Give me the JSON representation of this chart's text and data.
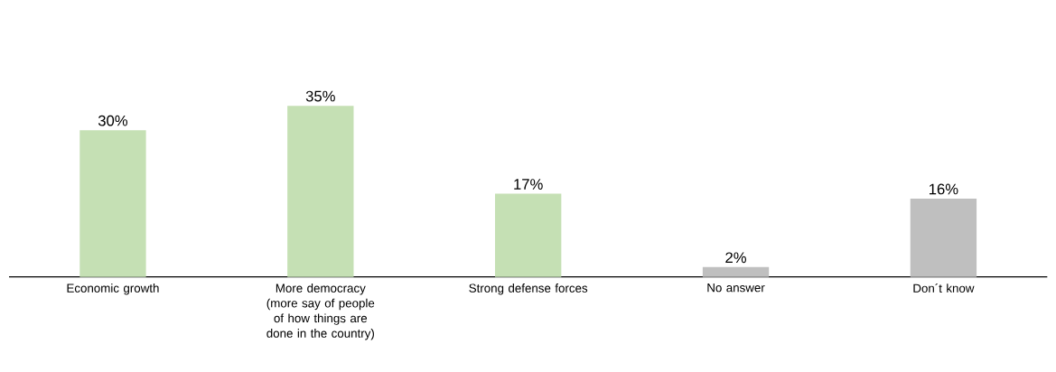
{
  "chart_data": {
    "type": "bar",
    "categories": [
      "Economic growth",
      "More democracy (more say of people of how things are done in the country)",
      "Strong defense forces",
      "No answer",
      "Don´t know"
    ],
    "values": [
      30,
      35,
      17,
      2,
      16
    ],
    "colors": [
      "#c5e0b4",
      "#c5e0b4",
      "#c5e0b4",
      "#bfbfbf",
      "#bfbfbf"
    ],
    "value_labels": [
      "30%",
      "35%",
      "17%",
      "2%",
      "16%"
    ]
  }
}
